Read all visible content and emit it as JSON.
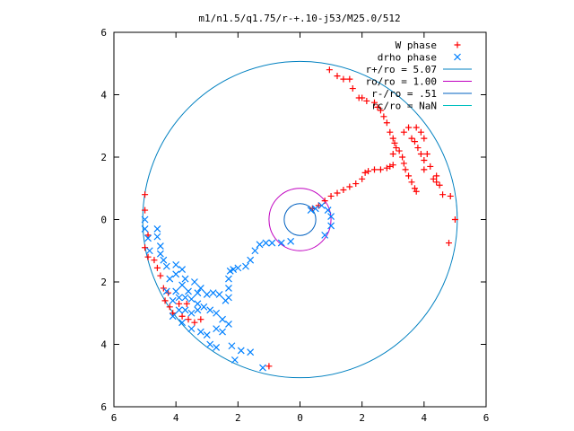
{
  "chart_data": {
    "type": "scatter",
    "title": "m1/n1.5/q1.75/r-+.10-j53/M25.0/512",
    "xlabel": "",
    "ylabel": "",
    "xlim": [
      -6,
      6
    ],
    "ylim": [
      -6,
      6
    ],
    "x_ticks": [
      "6",
      "4",
      "2",
      "0",
      "2",
      "4",
      "6"
    ],
    "y_ticks": [
      "6",
      "4",
      "2",
      "0",
      "2",
      "4",
      "6"
    ],
    "grid": false,
    "legend_position": "top-right",
    "legend": [
      {
        "label": "W phase",
        "marker": "+",
        "color": "#ff0000"
      },
      {
        "label": "drho phase",
        "marker": "x",
        "color": "#0080ff"
      },
      {
        "label": "r+/ro = 5.07",
        "marker": "line",
        "color": "#0080c0"
      },
      {
        "label": "ro/ro = 1.00",
        "marker": "line",
        "color": "#c000c0"
      },
      {
        "label": "r-/ro = .51",
        "marker": "line",
        "color": "#0060c0"
      },
      {
        "label": "rc/ro = NaN",
        "marker": "line",
        "color": "#00c0c0"
      }
    ],
    "circles": [
      {
        "name": "r+/ro = 5.07",
        "radius": 5.07,
        "color": "#0080c0"
      },
      {
        "name": "ro/ro = 1.00",
        "radius": 1.0,
        "color": "#c000c0"
      },
      {
        "name": "r-/ro = .51",
        "radius": 0.51,
        "color": "#0060c0"
      }
    ],
    "series": [
      {
        "name": "W phase",
        "marker": "+",
        "color": "#ff0000",
        "points": [
          [
            0.4,
            0.35
          ],
          [
            0.6,
            0.45
          ],
          [
            0.8,
            0.6
          ],
          [
            1.0,
            0.75
          ],
          [
            1.2,
            0.85
          ],
          [
            1.4,
            0.95
          ],
          [
            1.6,
            1.05
          ],
          [
            1.8,
            1.15
          ],
          [
            2.0,
            1.3
          ],
          [
            2.1,
            1.5
          ],
          [
            2.2,
            1.55
          ],
          [
            2.4,
            1.6
          ],
          [
            2.6,
            1.6
          ],
          [
            2.8,
            1.65
          ],
          [
            2.9,
            1.7
          ],
          [
            3.0,
            1.75
          ],
          [
            3.0,
            2.1
          ],
          [
            3.1,
            2.3
          ],
          [
            3.05,
            2.45
          ],
          [
            3.2,
            2.2
          ],
          [
            3.3,
            2.0
          ],
          [
            3.35,
            1.8
          ],
          [
            3.4,
            1.6
          ],
          [
            3.5,
            1.4
          ],
          [
            3.6,
            1.2
          ],
          [
            3.7,
            1.0
          ],
          [
            3.75,
            0.9
          ],
          [
            3.6,
            2.6
          ],
          [
            3.7,
            2.5
          ],
          [
            3.8,
            2.3
          ],
          [
            3.9,
            2.1
          ],
          [
            4.0,
            1.9
          ],
          [
            4.2,
            1.7
          ],
          [
            4.3,
            1.3
          ],
          [
            4.4,
            1.2
          ],
          [
            4.5,
            1.1
          ],
          [
            3.35,
            2.8
          ],
          [
            3.5,
            2.95
          ],
          [
            3.75,
            2.95
          ],
          [
            3.9,
            2.8
          ],
          [
            4.0,
            2.6
          ],
          [
            4.1,
            2.1
          ],
          [
            4.0,
            1.6
          ],
          [
            4.4,
            1.4
          ],
          [
            4.6,
            0.8
          ],
          [
            4.85,
            0.75
          ],
          [
            5.0,
            0.0
          ],
          [
            4.8,
            -0.75
          ],
          [
            0.95,
            4.8
          ],
          [
            1.2,
            4.6
          ],
          [
            1.4,
            4.5
          ],
          [
            1.6,
            4.5
          ],
          [
            1.7,
            4.2
          ],
          [
            1.9,
            3.9
          ],
          [
            2.0,
            3.9
          ],
          [
            2.15,
            3.8
          ],
          [
            2.4,
            3.75
          ],
          [
            2.5,
            3.6
          ],
          [
            2.6,
            3.5
          ],
          [
            2.7,
            3.3
          ],
          [
            2.8,
            3.1
          ],
          [
            2.9,
            2.8
          ],
          [
            3.0,
            2.6
          ],
          [
            -5.0,
            0.8
          ],
          [
            -5.0,
            0.3
          ],
          [
            -4.9,
            -0.5
          ],
          [
            -5.0,
            -0.9
          ],
          [
            -4.9,
            -1.2
          ],
          [
            -4.7,
            -1.3
          ],
          [
            -4.6,
            -1.55
          ],
          [
            -4.5,
            -1.8
          ],
          [
            -4.4,
            -2.2
          ],
          [
            -4.25,
            -2.35
          ],
          [
            -4.35,
            -2.6
          ],
          [
            -4.2,
            -2.8
          ],
          [
            -4.1,
            -3.0
          ],
          [
            -3.9,
            -2.7
          ],
          [
            -3.65,
            -2.7
          ],
          [
            -3.8,
            -3.1
          ],
          [
            -3.6,
            -3.2
          ],
          [
            -3.4,
            -3.3
          ],
          [
            -3.2,
            -3.2
          ],
          [
            -1.0,
            -4.7
          ]
        ]
      },
      {
        "name": "drho phase",
        "marker": "x",
        "color": "#0080ff",
        "points": [
          [
            0.35,
            0.3
          ],
          [
            0.5,
            0.35
          ],
          [
            0.7,
            0.45
          ],
          [
            0.9,
            0.3
          ],
          [
            1.0,
            0.1
          ],
          [
            1.0,
            -0.2
          ],
          [
            0.8,
            -0.5
          ],
          [
            -0.3,
            -0.7
          ],
          [
            -0.6,
            -0.75
          ],
          [
            -0.9,
            -0.75
          ],
          [
            -1.1,
            -0.75
          ],
          [
            -1.3,
            -0.8
          ],
          [
            -1.45,
            -1.0
          ],
          [
            -1.6,
            -1.3
          ],
          [
            -1.75,
            -1.5
          ],
          [
            -2.0,
            -1.55
          ],
          [
            -2.15,
            -1.6
          ],
          [
            -2.25,
            -1.65
          ],
          [
            -2.3,
            -1.9
          ],
          [
            -2.3,
            -2.2
          ],
          [
            -2.3,
            -2.5
          ],
          [
            -2.4,
            -2.6
          ],
          [
            -2.6,
            -2.4
          ],
          [
            -2.8,
            -2.35
          ],
          [
            -3.0,
            -2.4
          ],
          [
            -3.3,
            -2.35
          ],
          [
            -3.6,
            -2.3
          ],
          [
            -3.8,
            -2.1
          ],
          [
            -4.0,
            -1.75
          ],
          [
            -4.2,
            -1.9
          ],
          [
            -4.3,
            -2.3
          ],
          [
            -4.0,
            -2.3
          ],
          [
            -3.9,
            -2.5
          ],
          [
            -4.1,
            -2.6
          ],
          [
            -3.7,
            -2.5
          ],
          [
            -3.5,
            -2.55
          ],
          [
            -3.3,
            -2.7
          ],
          [
            -3.1,
            -2.8
          ],
          [
            -2.9,
            -2.9
          ],
          [
            -2.7,
            -3.0
          ],
          [
            -2.5,
            -3.2
          ],
          [
            -2.3,
            -3.35
          ],
          [
            -3.3,
            -2.9
          ],
          [
            -3.5,
            -3.0
          ],
          [
            -3.7,
            -2.9
          ],
          [
            -3.9,
            -2.9
          ],
          [
            -4.1,
            -3.1
          ],
          [
            -3.8,
            -3.3
          ],
          [
            -3.5,
            -3.5
          ],
          [
            -3.2,
            -3.6
          ],
          [
            -3.0,
            -3.7
          ],
          [
            -2.7,
            -3.5
          ],
          [
            -2.5,
            -3.6
          ],
          [
            -2.9,
            -4.0
          ],
          [
            -2.7,
            -4.1
          ],
          [
            -2.2,
            -4.05
          ],
          [
            -1.9,
            -4.2
          ],
          [
            -1.6,
            -4.25
          ],
          [
            -2.1,
            -4.5
          ],
          [
            -1.2,
            -4.75
          ],
          [
            -5.0,
            0.0
          ],
          [
            -5.0,
            -0.3
          ],
          [
            -4.9,
            -0.6
          ],
          [
            -4.85,
            -1.0
          ],
          [
            -4.6,
            -0.3
          ],
          [
            -4.6,
            -0.55
          ],
          [
            -4.5,
            -0.85
          ],
          [
            -4.5,
            -1.1
          ],
          [
            -4.4,
            -1.3
          ],
          [
            -4.3,
            -1.5
          ],
          [
            -4.0,
            -1.45
          ],
          [
            -3.8,
            -1.6
          ],
          [
            -3.7,
            -1.9
          ],
          [
            -3.4,
            -2.0
          ],
          [
            -3.2,
            -2.2
          ]
        ]
      }
    ]
  }
}
